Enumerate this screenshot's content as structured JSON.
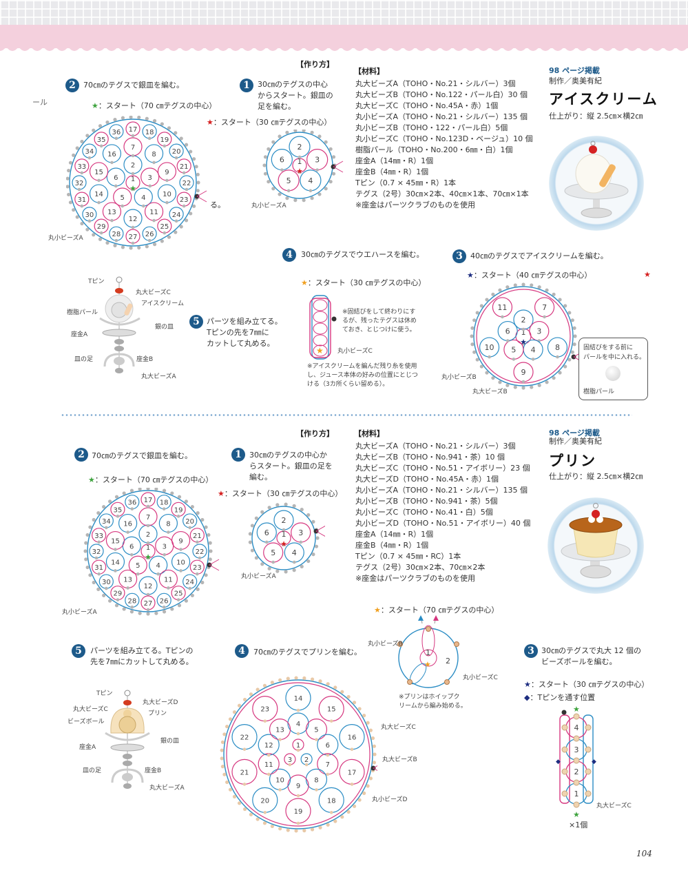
{
  "colors": {
    "accent": "#1d5a8a",
    "pink": "#f4d0dd",
    "thread_blue": "#2a8cc4",
    "thread_pink": "#d6377f"
  },
  "icecream": {
    "method_heading": "【作り方】",
    "materials_heading": "【材料】",
    "materials": [
      "丸大ビーズA（TOHO・No.21・シルバー）3個",
      "丸大ビーズB（TOHO・No.122・パール白）30 個",
      "丸大ビーズC（TOHO・No.45A・赤）1個",
      "丸小ビーズA（TOHO・No.21・シルバー）135 個",
      "丸小ビーズB（TOHO・122・パール白）5個",
      "丸小ビーズC（TOHO・No.123D・ベージュ）10 個",
      "樹脂パール（TOHO・No.200・6㎜・白）1個",
      "座金A（14㎜・R）1個",
      "座金B（4㎜・R）1個",
      "Tピン（0.7 × 45㎜・R）1本",
      "テグス（2号）30㎝×2本、40㎝×1本、70㎝×1本",
      "※座金はパーツクラブのものを使用"
    ],
    "page_ref": "98 ページ掲載",
    "author": "制作／奥美有紀",
    "title": "アイスクリーム",
    "size": "仕上がり：縦 2.5㎝×横2㎝",
    "step2": {
      "num": "2",
      "text": "70㎝のテグスで銀皿を編む。",
      "start": "：スタート（70 ㎝テグスの中心）",
      "labels": [
        "1",
        "2",
        "3",
        "4",
        "5",
        "6",
        "7",
        "8",
        "9",
        "10",
        "11",
        "12",
        "13",
        "14",
        "15",
        "16",
        "17",
        "18",
        "19",
        "20",
        "21",
        "22",
        "23",
        "24",
        "25",
        "26",
        "27",
        "28",
        "29",
        "30",
        "31",
        "32",
        "33",
        "34",
        "35",
        "36"
      ],
      "bead_label": "丸小ビーズA",
      "cut_left": "ール",
      "cut_right": "る。"
    },
    "step1": {
      "num": "1",
      "lines": [
        "30㎝のテグスの中心",
        "からスタート。銀皿の",
        "足を編む。"
      ],
      "start": "：スタート（30 ㎝テグスの中心）",
      "labels": [
        "1",
        "2",
        "3",
        "4",
        "5",
        "6"
      ],
      "bead_label": "丸小ビーズA"
    },
    "step4": {
      "num": "4",
      "text": "30㎝のテグスでウエハースを編む。",
      "start": "：スタート（30 ㎝テグスの中心）",
      "note1": [
        "※固結びをして終わりにす",
        "るが、残ったテグスは休め",
        "ておき、とじつけに使う。"
      ],
      "bead_label": "丸小ビーズC",
      "note2": [
        "※アイスクリームを編んだ残り糸を使用",
        "し、ジュース本体の好みの位置にとじつ",
        "ける（3カ所くらい留める）。"
      ]
    },
    "step3": {
      "num": "3",
      "text": "40㎝のテグスでアイスクリームを編む。",
      "start": "：スタート（40 ㎝テグスの中心）",
      "labels": [
        "1",
        "2",
        "3",
        "4",
        "5",
        "6",
        "7",
        "8",
        "9",
        "10",
        "11"
      ],
      "bead_b_small": "丸小ビーズB",
      "bead_b_large": "丸大ビーズB",
      "callout": [
        "固結びをする前に",
        "パールを中に入れる。"
      ],
      "pearl": "樹脂パール"
    },
    "step5": {
      "num": "5",
      "lines": [
        "パーツを組み立てる。",
        "Tピンの先を7㎜に",
        "カットして丸める。"
      ],
      "parts": {
        "tpin": "Tピン",
        "bead_c": "丸大ビーズC",
        "icecream": "アイスクリーム",
        "pearl": "樹脂パール",
        "plate": "銀の皿",
        "zagane_a": "座金A",
        "foot": "皿の足",
        "zagane_b": "座金B",
        "bead_a": "丸大ビーズA"
      }
    }
  },
  "pudding": {
    "method_heading": "【作り方】",
    "materials_heading": "【材料】",
    "materials": [
      "丸大ビーズA（TOHO・No.21・シルバー）3個",
      "丸大ビーズB（TOHO・No.941・茶）10 個",
      "丸大ビーズC（TOHO・No.51・アイボリー）23 個",
      "丸大ビーズD（TOHO・No.45A・赤）1個",
      "丸小ビーズA（TOHO・No.21・シルバー）135 個",
      "丸小ビーズB（TOHO・No.941・茶）5個",
      "丸小ビーズC（TOHO・No.41・白）5個",
      "丸小ビーズD（TOHO・No.51・アイボリー）40 個",
      "座金A（14㎜・R）1個",
      "座金B（4㎜・R）1個",
      "Tピン（0.7 × 45㎜・RC）1本",
      "テグス（2号）30㎝×2本、70㎝×2本",
      "※座金はパーツクラブのものを使用"
    ],
    "page_ref": "98 ページ掲載",
    "author": "制作／奥美有紀",
    "title": "プリン",
    "size": "仕上がり：縦 2.5㎝×横2㎝",
    "step2": {
      "num": "2",
      "text": "70㎝のテグスで銀皿を編む。",
      "start": "：スタート（70 ㎝テグスの中心）",
      "labels": [
        "1",
        "2",
        "3",
        "4",
        "5",
        "6",
        "7",
        "8",
        "9",
        "10",
        "11",
        "12",
        "13",
        "14",
        "15",
        "16",
        "17",
        "18",
        "19",
        "20",
        "21",
        "22",
        "23",
        "24",
        "25",
        "26",
        "27",
        "28",
        "29",
        "30",
        "31",
        "32",
        "33",
        "34",
        "35",
        "36"
      ],
      "bead_label": "丸小ビーズA"
    },
    "step1": {
      "num": "1",
      "lines": [
        "30㎝のテグスの中心か",
        "らスタート。銀皿の足を",
        "編む。"
      ],
      "start": "：スタート（30 ㎝テグスの中心）",
      "labels": [
        "1",
        "2",
        "3",
        "4",
        "5",
        "6"
      ],
      "bead_label": "丸小ビーズA"
    },
    "step4a": {
      "start": "：スタート（70 ㎝テグスの中心）",
      "labels": [
        "1",
        "2"
      ],
      "bead_b": "丸小ビーズB",
      "bead_c": "丸小ビーズC",
      "note": [
        "※プリンはホイップク",
        "リームから編み始める。"
      ]
    },
    "step4": {
      "num": "4",
      "text": "70㎝のテグスでプリンを編む。",
      "labels": [
        "1",
        "2",
        "3",
        "4",
        "5",
        "6",
        "7",
        "8",
        "9",
        "10",
        "11",
        "12",
        "13",
        "14",
        "15",
        "16",
        "17",
        "18",
        "19",
        "20",
        "21",
        "22",
        "23"
      ],
      "bead_c": "丸大ビーズC",
      "bead_b": "丸大ビーズB",
      "bead_d": "丸小ビーズD"
    },
    "step3": {
      "num": "3",
      "lines": [
        "30㎝のテグスで丸大 12 個の",
        "ビーズボールを編む。"
      ],
      "start": "：スタート（30 ㎝テグスの中心）",
      "diamond": "：Tピンを通す位置",
      "labels": [
        "1",
        "2",
        "3",
        "4"
      ],
      "bead_label": "丸大ビーズC",
      "count": "×1個"
    },
    "step5": {
      "num": "5",
      "lines": [
        "パーツを組み立てる。Tピンの",
        "先を7㎜にカットして丸める。"
      ],
      "parts": {
        "tpin": "Tピン",
        "bead_d": "丸大ビーズD",
        "bead_c": "丸大ビーズC",
        "pudding": "プリン",
        "ball": "ビーズボール",
        "plate": "銀の皿",
        "zagane_a": "座金A",
        "foot": "皿の足",
        "zagane_b": "座金B",
        "bead_a": "丸大ビーズA"
      }
    }
  },
  "page_number": "104"
}
